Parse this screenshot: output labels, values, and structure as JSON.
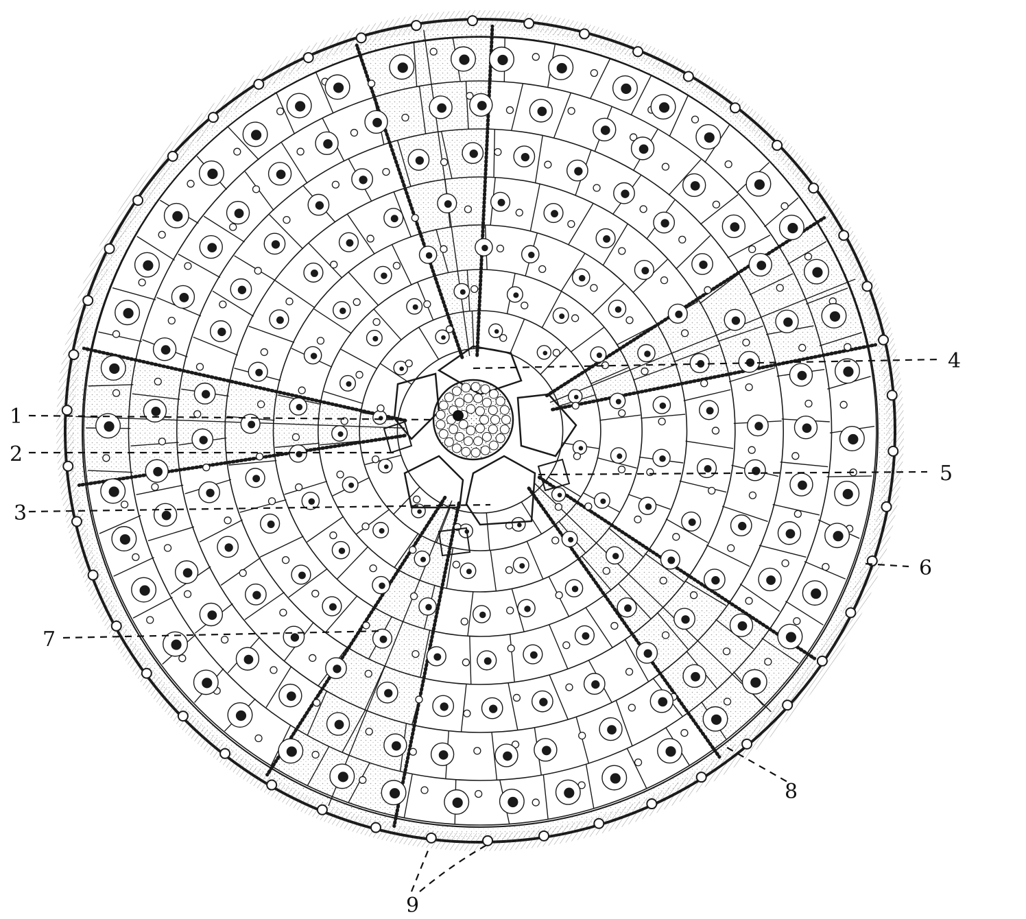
{
  "figure": {
    "ink_color": "#1a1a1a",
    "paper_color": "#ffffff",
    "labels": [
      {
        "id": "1",
        "text": "1"
      },
      {
        "id": "2",
        "text": "2"
      },
      {
        "id": "3",
        "text": "3"
      },
      {
        "id": "4",
        "text": "4"
      },
      {
        "id": "5",
        "text": "5"
      },
      {
        "id": "6",
        "text": "6"
      },
      {
        "id": "7",
        "text": "7"
      },
      {
        "id": "8",
        "text": "8"
      },
      {
        "id": "9",
        "text": "9"
      }
    ]
  }
}
